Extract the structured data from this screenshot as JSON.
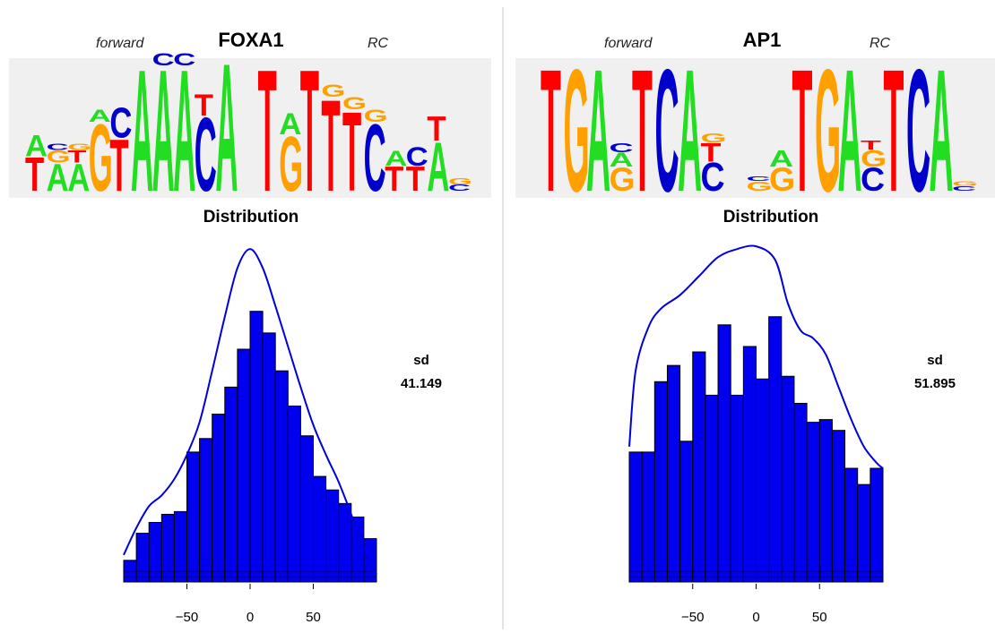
{
  "panels": [
    {
      "motif": "FOXA1",
      "forward_label": "forward",
      "rc_label": "RC",
      "dist_title": "Distribution",
      "sd_label": "sd",
      "sd_value": "41.149"
    },
    {
      "motif": "AP1",
      "forward_label": "forward",
      "rc_label": "RC",
      "dist_title": "Distribution",
      "sd_label": "sd",
      "sd_value": "51.895"
    }
  ],
  "logo_colors": {
    "A": "#22dd22",
    "C": "#0000cc",
    "G": "#ff9f00",
    "T": "#ff0000"
  },
  "logo_columns": [
    [
      [
        [
          "T",
          0.55
        ],
        [
          "A",
          0.35
        ]
      ],
      [
        [
          "A",
          0.45
        ],
        [
          "G",
          0.2
        ],
        [
          "C",
          0.1
        ]
      ],
      [
        [
          "A",
          0.45
        ],
        [
          "T",
          0.2
        ],
        [
          "G",
          0.1
        ]
      ],
      [
        [
          "G",
          1.1
        ],
        [
          "A",
          0.2
        ]
      ],
      [
        [
          "T",
          0.85
        ],
        [
          "C",
          0.5
        ]
      ],
      [
        [
          "A",
          2.0
        ]
      ],
      [
        [
          "A",
          2.0
        ],
        [
          "C",
          0.2
        ]
      ],
      [
        [
          "A",
          2.0
        ],
        [
          "C",
          0.2
        ]
      ],
      [
        [
          "C",
          1.2
        ],
        [
          "T",
          0.35
        ]
      ],
      [
        [
          "A",
          2.1
        ]
      ],
      [],
      [
        [
          "T",
          2.0
        ]
      ],
      [
        [
          "G",
          0.9
        ],
        [
          "A",
          0.35
        ]
      ],
      [
        [
          "T",
          2.0
        ]
      ],
      [
        [
          "T",
          1.5
        ],
        [
          "G",
          0.2
        ]
      ],
      [
        [
          "T",
          1.3
        ],
        [
          "G",
          0.2
        ]
      ],
      [
        [
          "C",
          1.1
        ],
        [
          "G",
          0.2
        ]
      ],
      [
        [
          "T",
          0.4
        ],
        [
          "A",
          0.25
        ]
      ],
      [
        [
          "T",
          0.4
        ],
        [
          "C",
          0.3
        ]
      ],
      [
        [
          "A",
          0.8
        ],
        [
          "T",
          0.4
        ]
      ],
      [
        [
          "C",
          0.1
        ],
        [
          "G",
          0.1
        ]
      ]
    ],
    [
      [
        [
          "T",
          2.6
        ]
      ],
      [
        [
          "G",
          2.6
        ]
      ],
      [
        [
          "A",
          2.6
        ]
      ],
      [
        [
          "G",
          0.5
        ],
        [
          "A",
          0.3
        ],
        [
          "C",
          0.2
        ]
      ],
      [
        [
          "T",
          2.6
        ]
      ],
      [
        [
          "C",
          2.6
        ]
      ],
      [
        [
          "A",
          2.6
        ]
      ],
      [
        [
          "C",
          0.6
        ],
        [
          "T",
          0.4
        ],
        [
          "G",
          0.2
        ]
      ],
      [],
      [
        [
          "G",
          0.2
        ],
        [
          "C",
          0.1
        ]
      ],
      [
        [
          "G",
          0.5
        ],
        [
          "A",
          0.35
        ]
      ],
      [
        [
          "T",
          2.6
        ]
      ],
      [
        [
          "G",
          2.6
        ]
      ],
      [
        [
          "A",
          2.6
        ]
      ],
      [
        [
          "C",
          0.5
        ],
        [
          "G",
          0.35
        ],
        [
          "T",
          0.2
        ]
      ],
      [
        [
          "T",
          2.6
        ]
      ],
      [
        [
          "C",
          2.6
        ]
      ],
      [
        [
          "A",
          2.6
        ]
      ],
      [
        [
          "C",
          0.1
        ],
        [
          "G",
          0.1
        ]
      ]
    ]
  ],
  "chart_data": [
    {
      "type": "bar",
      "title": "Distribution",
      "x_tick_labels": [
        "−50",
        "0",
        "50"
      ],
      "x_ticks": [
        -50,
        0,
        50
      ],
      "xlim": [
        -100,
        100
      ],
      "bin_width": 10,
      "bin_starts": [
        -100,
        -90,
        -80,
        -70,
        -60,
        -50,
        -40,
        -30,
        -20,
        -10,
        0,
        10,
        20,
        30,
        40,
        50,
        60,
        70,
        80,
        90
      ],
      "values": [
        0.08,
        0.18,
        0.22,
        0.25,
        0.26,
        0.48,
        0.53,
        0.62,
        0.72,
        0.86,
        1.0,
        0.92,
        0.78,
        0.65,
        0.54,
        0.39,
        0.34,
        0.29,
        0.24,
        0.16
      ],
      "density_curve": [
        [
          -100,
          0.1
        ],
        [
          -90,
          0.2
        ],
        [
          -80,
          0.28
        ],
        [
          -70,
          0.32
        ],
        [
          -60,
          0.38
        ],
        [
          -50,
          0.47
        ],
        [
          -40,
          0.59
        ],
        [
          -30,
          0.78
        ],
        [
          -20,
          0.98
        ],
        [
          -10,
          1.16
        ],
        [
          0,
          1.23
        ],
        [
          10,
          1.16
        ],
        [
          20,
          1.02
        ],
        [
          30,
          0.87
        ],
        [
          40,
          0.72
        ],
        [
          50,
          0.58
        ],
        [
          60,
          0.47
        ],
        [
          70,
          0.37
        ],
        [
          80,
          0.25
        ],
        [
          90,
          0.12
        ],
        [
          100,
          0.03
        ]
      ],
      "ymax": 1.3,
      "sd": 41.149
    },
    {
      "type": "bar",
      "title": "Distribution",
      "x_tick_labels": [
        "−50",
        "0",
        "50"
      ],
      "x_ticks": [
        -50,
        0,
        50
      ],
      "xlim": [
        -100,
        100
      ],
      "bin_width": 10,
      "bin_starts": [
        -100,
        -90,
        -80,
        -70,
        -60,
        -50,
        -40,
        -30,
        -20,
        -10,
        0,
        10,
        20,
        30,
        40,
        50,
        60,
        70,
        80,
        90
      ],
      "values": [
        0.48,
        0.48,
        0.74,
        0.8,
        0.52,
        0.85,
        0.69,
        0.95,
        0.69,
        0.87,
        0.75,
        0.98,
        0.76,
        0.66,
        0.59,
        0.6,
        0.56,
        0.42,
        0.36,
        0.42
      ],
      "density_curve": [
        [
          -100,
          0.5
        ],
        [
          -95,
          0.78
        ],
        [
          -85,
          0.94
        ],
        [
          -75,
          1.01
        ],
        [
          -60,
          1.06
        ],
        [
          -45,
          1.13
        ],
        [
          -30,
          1.2
        ],
        [
          -15,
          1.23
        ],
        [
          0,
          1.24
        ],
        [
          15,
          1.19
        ],
        [
          25,
          1.03
        ],
        [
          35,
          0.93
        ],
        [
          45,
          0.9
        ],
        [
          55,
          0.84
        ],
        [
          65,
          0.72
        ],
        [
          75,
          0.6
        ],
        [
          85,
          0.5
        ],
        [
          95,
          0.44
        ],
        [
          100,
          0.42
        ]
      ],
      "ymax": 1.3,
      "sd": 51.895
    }
  ]
}
